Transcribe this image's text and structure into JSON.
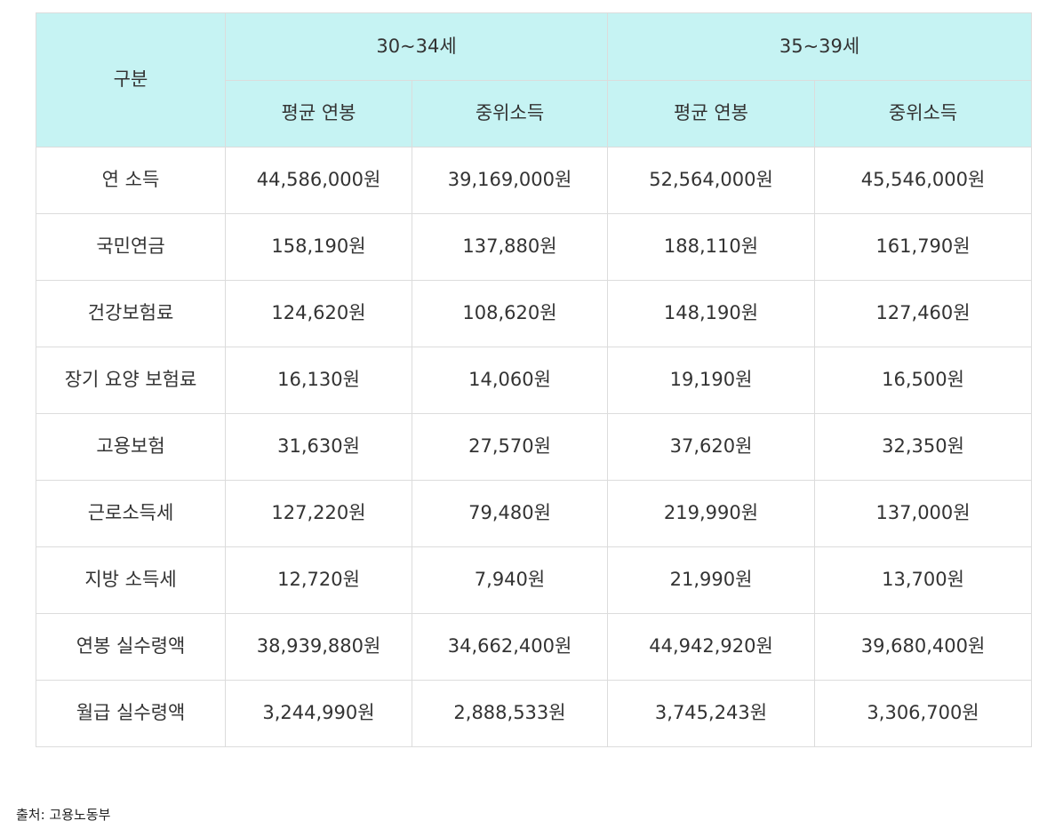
{
  "header": {
    "group_label": "구분",
    "groups": [
      "30~34세",
      "35~39세"
    ],
    "subheaders": [
      "평균 연봉",
      "중위소득",
      "평균 연봉",
      "중위소득"
    ]
  },
  "table": {
    "rows": [
      [
        "연 소득",
        "44,586,000원",
        "39,169,000원",
        "52,564,000원",
        "45,546,000원"
      ],
      [
        "국민연금",
        "158,190원",
        "137,880원",
        "188,110원",
        "161,790원"
      ],
      [
        "건강보험료",
        "124,620원",
        "108,620원",
        "148,190원",
        "127,460원"
      ],
      [
        "장기 요양 보험료",
        "16,130원",
        "14,060원",
        "19,190원",
        "16,500원"
      ],
      [
        "고용보험",
        "31,630원",
        "27,570원",
        "37,620원",
        "32,350원"
      ],
      [
        "근로소득세",
        "127,220원",
        "79,480원",
        "219,990원",
        "137,000원"
      ],
      [
        "지방 소득세",
        "12,720원",
        "7,940원",
        "21,990원",
        "13,700원"
      ],
      [
        "연봉 실수령액",
        "38,939,880원",
        "34,662,400원",
        "44,942,920원",
        "39,680,400원"
      ],
      [
        "월급 실수령액",
        "3,244,990원",
        "2,888,533원",
        "3,745,243원",
        "3,306,700원"
      ]
    ]
  },
  "source": "출처: 고용노동부"
}
